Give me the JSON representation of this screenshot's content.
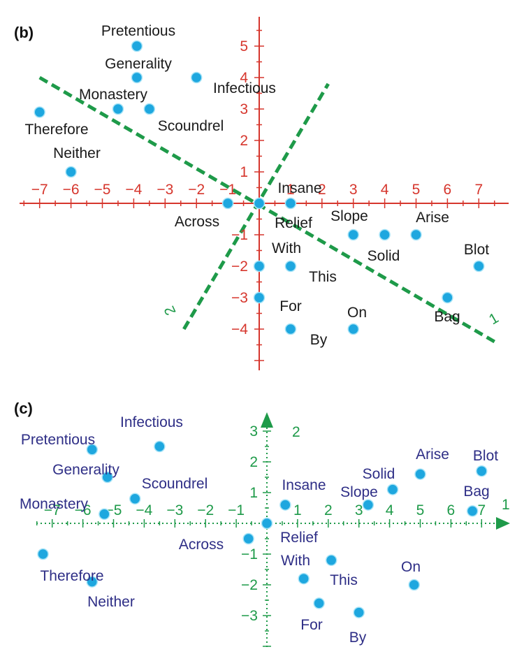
{
  "colors": {
    "point": "#1ea7df",
    "point_stroke": "#a8e4f7",
    "axis_b": "#d6362d",
    "axis_c": "#1e9a49",
    "rotated_axes": "#1e9a49",
    "word_b": "#1a1a1a",
    "word_c": "#2e2e86"
  },
  "chart_data": [
    {
      "type": "scatter",
      "panel_label": "(b)",
      "xlim": [
        -7.5,
        8
      ],
      "ylim": [
        -5,
        6
      ],
      "x_ticks": [
        -7,
        -6,
        -5,
        -4,
        -3,
        -2,
        -1,
        1,
        2,
        3,
        4,
        5,
        6,
        7
      ],
      "y_ticks": [
        -4,
        -3,
        -2,
        -1,
        1,
        2,
        3,
        4,
        5
      ],
      "rotated_axes": [
        {
          "name": "1",
          "from": [
            -7,
            4
          ],
          "to": [
            7.5,
            -4.4
          ]
        },
        {
          "name": "2",
          "from": [
            -2.4,
            -4
          ],
          "to": [
            2.2,
            3.8
          ]
        }
      ],
      "points": [
        {
          "label": "Pretentious",
          "x": -3.9,
          "y": 5.0
        },
        {
          "label": "Generality",
          "x": -3.9,
          "y": 4.0
        },
        {
          "label": "Infectious",
          "x": -2.0,
          "y": 4.0
        },
        {
          "label": "Monastery",
          "x": -4.5,
          "y": 3.0
        },
        {
          "label": "Scoundrel",
          "x": -3.5,
          "y": 3.0
        },
        {
          "label": "Therefore",
          "x": -7.0,
          "y": 2.9
        },
        {
          "label": "Neither",
          "x": -6.0,
          "y": 1.0
        },
        {
          "label": "Across",
          "x": -1.0,
          "y": 0.0
        },
        {
          "label": "Relief",
          "x": 0.0,
          "y": 0.0
        },
        {
          "label": "Insane",
          "x": 1.0,
          "y": 0.0
        },
        {
          "label": "Slope",
          "x": 3.0,
          "y": -1.0
        },
        {
          "label": "Solid",
          "x": 4.0,
          "y": -1.0
        },
        {
          "label": "Arise",
          "x": 5.0,
          "y": -1.0
        },
        {
          "label": "With",
          "x": 0.0,
          "y": -2.0
        },
        {
          "label": "This",
          "x": 1.0,
          "y": -2.0
        },
        {
          "label": "Blot",
          "x": 7.0,
          "y": -2.0
        },
        {
          "label": "Bag",
          "x": 6.0,
          "y": -3.0
        },
        {
          "label": "For",
          "x": 0.0,
          "y": -3.0
        },
        {
          "label": "By",
          "x": 1.0,
          "y": -4.0
        },
        {
          "label": "On",
          "x": 3.0,
          "y": -4.0
        }
      ]
    },
    {
      "type": "scatter",
      "panel_label": "(c)",
      "xlim": [
        -7.5,
        7.8
      ],
      "ylim": [
        -3.6,
        3.6
      ],
      "x_axis_name": "1",
      "y_axis_name": "2",
      "x_ticks": [
        -7,
        -6,
        -5,
        -4,
        -3,
        -2,
        -1,
        1,
        2,
        3,
        4,
        5,
        6,
        7
      ],
      "y_ticks": [
        -3,
        -2,
        -1,
        1,
        2,
        3
      ],
      "points": [
        {
          "label": "Pretentious",
          "x": -5.7,
          "y": 2.4
        },
        {
          "label": "Infectious",
          "x": -3.5,
          "y": 2.5
        },
        {
          "label": "Generality",
          "x": -5.2,
          "y": 1.5
        },
        {
          "label": "Scoundrel",
          "x": -4.3,
          "y": 0.8
        },
        {
          "label": "Monastery",
          "x": -5.3,
          "y": 0.3
        },
        {
          "label": "Therefore",
          "x": -7.3,
          "y": -1.0
        },
        {
          "label": "Neither",
          "x": -5.7,
          "y": -1.9
        },
        {
          "label": "Across",
          "x": -0.6,
          "y": -0.5
        },
        {
          "label": "Relief",
          "x": 0.0,
          "y": 0.0
        },
        {
          "label": "Insane",
          "x": 0.6,
          "y": 0.6
        },
        {
          "label": "Slope",
          "x": 3.3,
          "y": 0.6
        },
        {
          "label": "Solid",
          "x": 4.1,
          "y": 1.1
        },
        {
          "label": "Arise",
          "x": 5.0,
          "y": 1.6
        },
        {
          "label": "Blot",
          "x": 7.0,
          "y": 1.7
        },
        {
          "label": "Bag",
          "x": 6.7,
          "y": 0.4
        },
        {
          "label": "With",
          "x": 1.2,
          "y": -1.8
        },
        {
          "label": "This",
          "x": 2.1,
          "y": -1.2
        },
        {
          "label": "On",
          "x": 4.8,
          "y": -2.0
        },
        {
          "label": "For",
          "x": 1.7,
          "y": -2.6
        },
        {
          "label": "By",
          "x": 3.0,
          "y": -2.9
        }
      ]
    }
  ]
}
